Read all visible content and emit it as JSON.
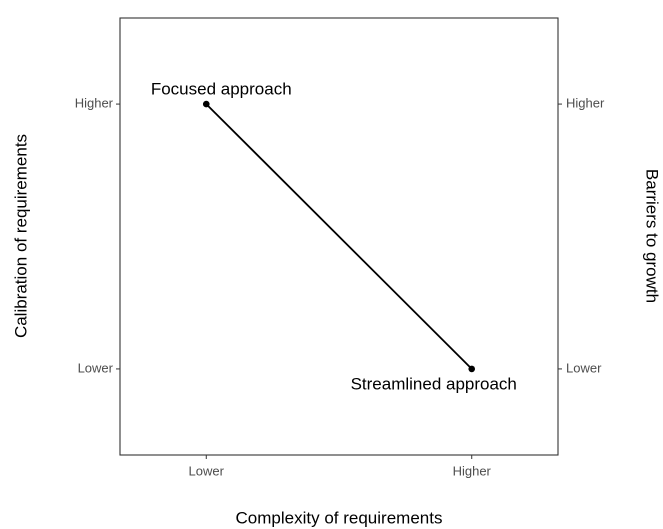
{
  "chart_data": {
    "type": "line",
    "x": [
      1,
      2
    ],
    "values": [
      2,
      1
    ],
    "color": "#000000",
    "xlim": [
      0.675,
      2.325
    ],
    "ylim": [
      0.675,
      2.325
    ],
    "y2lim": [
      0.675,
      2.325
    ],
    "xticks": [
      {
        "value": 1,
        "label": "Lower"
      },
      {
        "value": 2,
        "label": "Higher"
      }
    ],
    "yticks": [
      {
        "value": 1,
        "label": "Lower"
      },
      {
        "value": 2,
        "label": "Higher"
      }
    ],
    "y2ticks": [
      {
        "value": 1,
        "label": "Lower"
      },
      {
        "value": 2,
        "label": "Higher"
      }
    ],
    "x_label": "Complexity of requirements",
    "y_label": "Calibration of requirements",
    "y2_label": "Barriers to growth",
    "annotations": [
      {
        "text": "Focused approach",
        "x": 1,
        "y": 2
      },
      {
        "text": "Streamlined approach",
        "x": 2,
        "y": 1
      }
    ],
    "grid": false
  }
}
